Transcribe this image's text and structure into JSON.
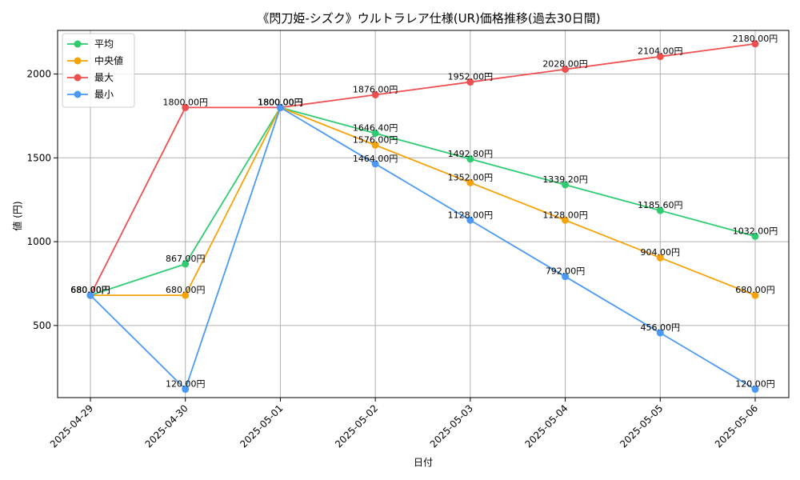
{
  "chart_data": {
    "type": "line",
    "title": "《閃刀姫-シズク》ウルトラレア仕様(UR)価格推移(過去30日間)",
    "xlabel": "日付",
    "ylabel": "値 (円)",
    "categories": [
      "2025-04-29",
      "2025-04-30",
      "2025-05-01",
      "2025-05-02",
      "2025-05-03",
      "2025-05-04",
      "2025-05-05",
      "2025-05-06"
    ],
    "y_ticks": [
      500,
      1000,
      1500,
      2000
    ],
    "ylim": [
      70,
      2260
    ],
    "grid": true,
    "legend_position": "top-left",
    "series": [
      {
        "name": "平均",
        "color": "#2ecc71",
        "values": [
          680,
          867,
          1800,
          1646.4,
          1492.8,
          1339.2,
          1185.6,
          1032
        ],
        "labels": [
          "680.00円",
          "867.00円",
          "1800.00円",
          "1646.40円",
          "1492.80円",
          "1339.20円",
          "1185.60円",
          "1032.00円"
        ]
      },
      {
        "name": "中央値",
        "color": "#f5a30a",
        "values": [
          680,
          680,
          1800,
          1576,
          1352,
          1128,
          904,
          680
        ],
        "labels": [
          "680.00円",
          "680.00円",
          "1800.00円",
          "1576.00円",
          "1352.00円",
          "1128.00円",
          "904.00円",
          "680.00円"
        ]
      },
      {
        "name": "最大",
        "color": "#ef4f4f",
        "values": [
          680,
          1800,
          1800,
          1876,
          1952,
          2028,
          2104,
          2180
        ],
        "labels": [
          "680.00円",
          "1800.00円",
          "1800.00円",
          "1876.00円",
          "1952.00円",
          "2028.00円",
          "2104.00円",
          "2180.00円"
        ]
      },
      {
        "name": "最小",
        "color": "#4a9af5",
        "values": [
          680,
          120,
          1800,
          1464,
          1128,
          792,
          456,
          120
        ],
        "labels": [
          "680.00円",
          "120.00円",
          "1800.00円",
          "1464.00円",
          "1128.00円",
          "792.00円",
          "456.00円",
          "120.00円"
        ]
      }
    ]
  }
}
